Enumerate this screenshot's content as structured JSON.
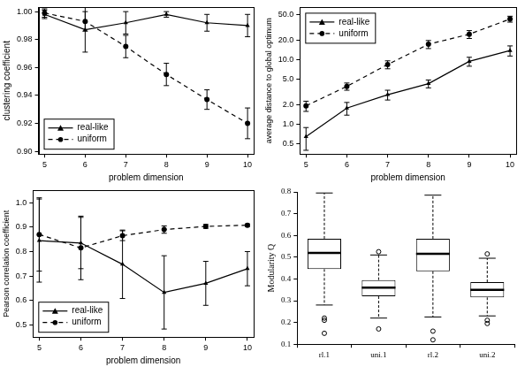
{
  "chart_data": [
    {
      "type": "line",
      "x_label": "problem dimension",
      "y_label": "clustering coefficient",
      "x": [
        5,
        6,
        7,
        8,
        9,
        10
      ],
      "xlim": [
        4.85,
        10.15
      ],
      "xticks": [
        5,
        6,
        7,
        8,
        9,
        10
      ],
      "ylim": [
        0.898,
        1.003
      ],
      "yticks": [
        {
          "value": 0.9,
          "label": "0.90"
        },
        {
          "value": 0.92,
          "label": "0.92"
        },
        {
          "value": 0.94,
          "label": "0.94"
        },
        {
          "value": 0.96,
          "label": "0.96"
        },
        {
          "value": 0.98,
          "label": "0.98"
        },
        {
          "value": 1.0,
          "label": "1.00"
        }
      ],
      "grid": false,
      "legend": "lower left",
      "series": [
        {
          "name": "real-like",
          "color": "#000000",
          "marker": "triangle",
          "line_style": "solid",
          "values": [
            0.998,
            0.987,
            0.992,
            0.998,
            0.992,
            0.99
          ],
          "errors": [
            0.003,
            0.016,
            0.008,
            0.002,
            0.006,
            0.008
          ]
        },
        {
          "name": "uniform",
          "color": "#000000",
          "marker": "circle",
          "line_style": "dashed",
          "values": [
            0.999,
            0.993,
            0.975,
            0.955,
            0.937,
            0.92
          ],
          "errors": [
            0.003,
            0.007,
            0.008,
            0.008,
            0.007,
            0.011
          ]
        }
      ]
    },
    {
      "type": "line",
      "x_label": "problem dimension",
      "y_label": "average distance to global optimum",
      "x": [
        5,
        6,
        7,
        8,
        9,
        10
      ],
      "xlim": [
        4.85,
        10.15
      ],
      "xticks": [
        5,
        6,
        7,
        8,
        9,
        10
      ],
      "log": "y",
      "ylim": [
        0.35,
        65
      ],
      "yticks": [
        0.5,
        {
          "value": 1,
          "label": "1.0"
        },
        {
          "value": 2,
          "label": "2.0"
        },
        {
          "value": 5,
          "label": "5.0"
        },
        {
          "value": 10,
          "label": "10.0"
        },
        {
          "value": 20,
          "label": "20.0"
        },
        {
          "value": 50,
          "label": "50.0"
        }
      ],
      "grid": false,
      "legend": "upper left",
      "series": [
        {
          "name": "real-like",
          "color": "#000000",
          "marker": "triangle",
          "line_style": "solid",
          "values": [
            0.65,
            1.8,
            2.9,
            4.3,
            9.5,
            14
          ],
          "errors": [
            0.25,
            0.4,
            0.5,
            0.6,
            1.5,
            2.5
          ]
        },
        {
          "name": "uniform",
          "color": "#000000",
          "marker": "circle",
          "line_style": "dashed",
          "values": [
            1.95,
            3.9,
            8.5,
            17.5,
            25,
            43
          ],
          "errors": [
            0.35,
            0.5,
            1.2,
            2.5,
            3.5,
            4.5
          ]
        }
      ]
    },
    {
      "type": "line",
      "x_label": "problem dimension",
      "y_label": "Pearson correlation coefficient",
      "x": [
        5,
        6,
        7,
        8,
        9,
        10
      ],
      "xlim": [
        4.85,
        10.15
      ],
      "xticks": [
        5,
        6,
        7,
        8,
        9,
        10
      ],
      "ylim": [
        0.45,
        1.05
      ],
      "yticks": [
        0.5,
        0.6,
        0.7,
        0.8,
        0.9,
        {
          "value": 1,
          "label": "1.0"
        }
      ],
      "grid": false,
      "legend": "lower left",
      "series": [
        {
          "name": "real-like",
          "color": "#000000",
          "marker": "triangle",
          "line_style": "solid",
          "values": [
            0.845,
            0.835,
            0.748,
            0.633,
            0.67,
            0.73
          ],
          "errors": [
            0.17,
            0.105,
            0.14,
            0.15,
            0.09,
            0.07
          ]
        },
        {
          "name": "uniform",
          "color": "#000000",
          "marker": "circle",
          "line_style": "dashed",
          "values": [
            0.87,
            0.815,
            0.865,
            0.89,
            0.903,
            0.908
          ],
          "errors": [
            0.15,
            0.13,
            0.02,
            0.015,
            0.008,
            0.005
          ]
        }
      ]
    },
    {
      "type": "box",
      "y_label": "Modularity Q",
      "categories": [
        "rl.1",
        "uni.1",
        "rl.2",
        "uni.2"
      ],
      "ylim": [
        0.1,
        0.8
      ],
      "yticks": [
        0.1,
        0.2,
        0.3,
        0.4,
        0.5,
        0.6,
        0.7,
        0.8
      ],
      "grid": false,
      "color": "#000000",
      "boxes": [
        {
          "whisker_low": 0.28,
          "q1": 0.445,
          "median": 0.52,
          "q3": 0.585,
          "whisker_high": 0.795,
          "outliers": [
            0.22,
            0.21,
            0.15
          ]
        },
        {
          "whisker_low": 0.22,
          "q1": 0.32,
          "median": 0.36,
          "q3": 0.395,
          "whisker_high": 0.51,
          "outliers": [
            0.525,
            0.17
          ]
        },
        {
          "whisker_low": 0.225,
          "q1": 0.435,
          "median": 0.515,
          "q3": 0.585,
          "whisker_high": 0.785,
          "outliers": [
            0.16,
            0.12
          ]
        },
        {
          "whisker_low": 0.23,
          "q1": 0.315,
          "median": 0.35,
          "q3": 0.385,
          "whisker_high": 0.495,
          "outliers": [
            0.515,
            0.21,
            0.195
          ]
        }
      ]
    }
  ]
}
